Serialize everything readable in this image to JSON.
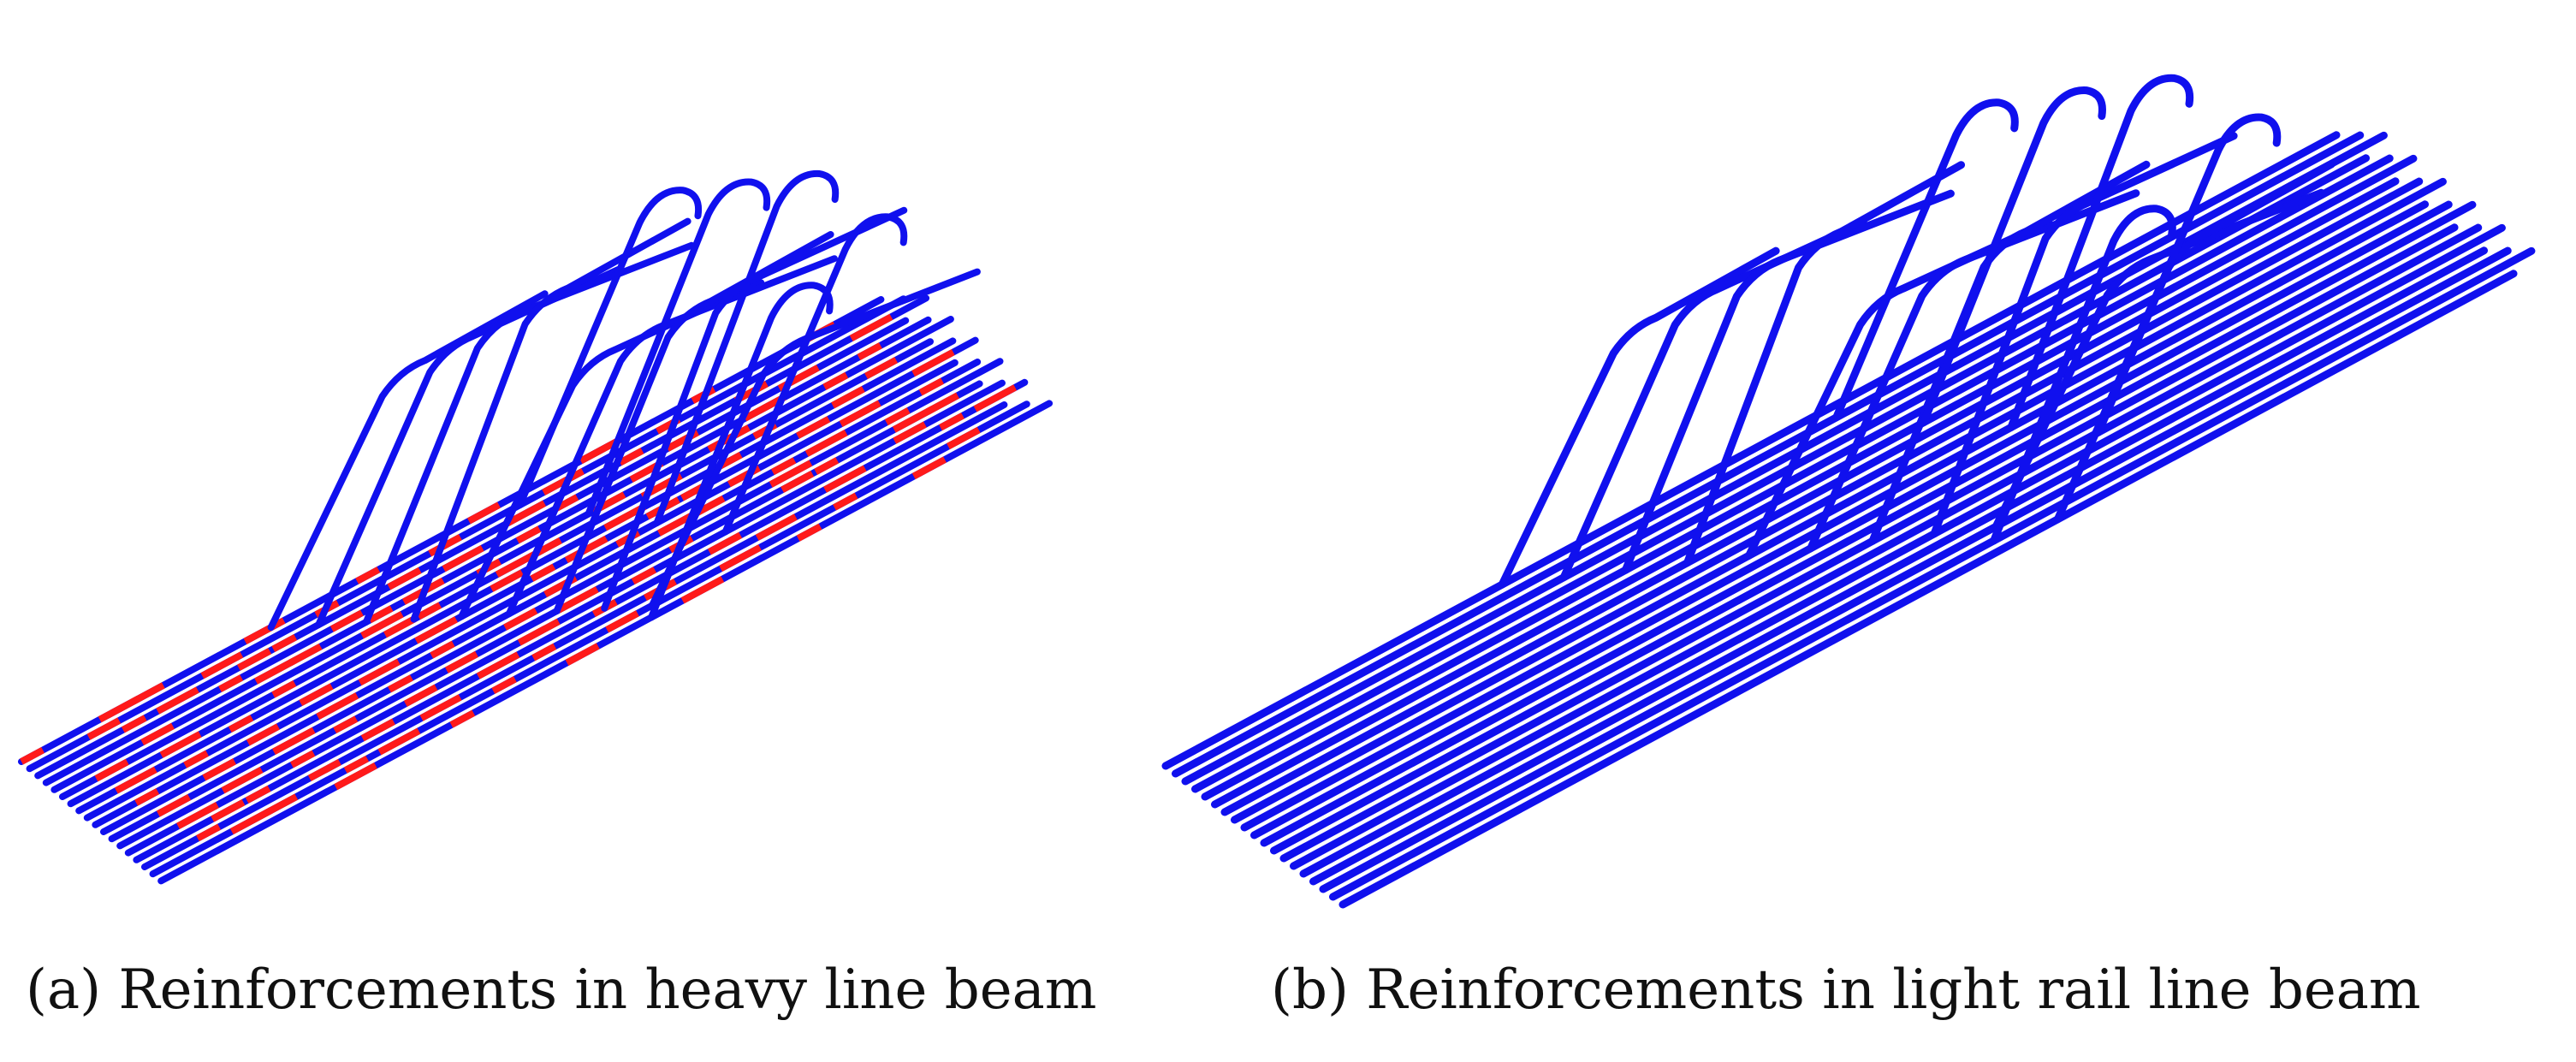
{
  "figure": {
    "colors": {
      "rebar": "#1010ee",
      "highlight": "#ff1a1a",
      "background": "#ffffff"
    },
    "panels": [
      {
        "id": "a",
        "caption": "(a) Reinforcements in heavy line beam"
      },
      {
        "id": "b",
        "caption": "(b) Reinforcements in light rail line beam"
      }
    ]
  }
}
